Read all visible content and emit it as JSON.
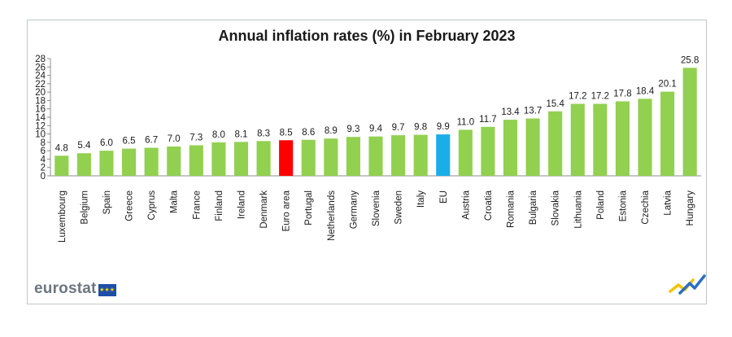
{
  "chart_data": {
    "type": "bar",
    "title": "Annual inflation rates (%) in February 2023",
    "categories": [
      "Luxembourg",
      "Belgium",
      "Spain",
      "Greece",
      "Cyprus",
      "Malta",
      "France",
      "Finland",
      "Ireland",
      "Denmark",
      "Euro area",
      "Portugal",
      "Netherlands",
      "Germany",
      "Slovenia",
      "Sweden",
      "Italy",
      "EU",
      "Austria",
      "Croatia",
      "Romania",
      "Bulgaria",
      "Slovakia",
      "Lithuania",
      "Poland",
      "Estonia",
      "Czechia",
      "Latvia",
      "Hungary"
    ],
    "values": [
      4.8,
      5.4,
      6.0,
      6.5,
      6.7,
      7.0,
      7.3,
      8.0,
      8.1,
      8.3,
      8.5,
      8.6,
      8.9,
      9.3,
      9.4,
      9.7,
      9.8,
      9.9,
      11.0,
      11.7,
      13.4,
      13.7,
      15.4,
      17.2,
      17.2,
      17.8,
      18.4,
      20.1,
      25.8
    ],
    "value_labels": [
      "4.8",
      "5.4",
      "6.0",
      "6.5",
      "6.7",
      "7.0",
      "7.3",
      "8.0",
      "8.1",
      "8.3",
      "8.5",
      "8.6",
      "8.9",
      "9.3",
      "9.4",
      "9.7",
      "9.8",
      "9.9",
      "11.0",
      "11.7",
      "13.4",
      "13.7",
      "15.4",
      "17.2",
      "17.2",
      "17.8",
      "18.4",
      "20.1",
      "25.8"
    ],
    "highlight": {
      "Euro area": "#ff0000",
      "EU": "#1aaee8"
    },
    "default_color": "#92d050",
    "ylim": [
      0,
      28
    ],
    "yticks": [
      "0",
      "2",
      "4",
      "6",
      "8",
      "10",
      "12",
      "14",
      "16",
      "18",
      "20",
      "22",
      "24",
      "26",
      "28"
    ],
    "xlabel": "",
    "ylabel": "",
    "grid": false,
    "legend": "none"
  },
  "branding": {
    "logo_text": "eurostat",
    "flag_stars": "★★★"
  }
}
